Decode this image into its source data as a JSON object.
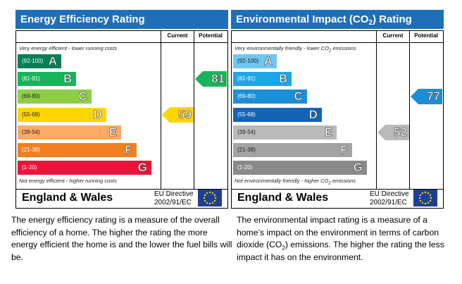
{
  "energy_chart": {
    "title": "Energy Efficiency Rating",
    "current_label": "Current",
    "potential_label": "Potential",
    "top_note": "Very energy efficient - lower running costs",
    "bottom_note": "Not energy efficient - higher running costs",
    "bands": [
      {
        "range": "(92-100)",
        "letter": "A",
        "color": "#008054"
      },
      {
        "range": "(81-91)",
        "letter": "B",
        "color": "#19b459"
      },
      {
        "range": "(69-80)",
        "letter": "C",
        "color": "#8dce46"
      },
      {
        "range": "(55-68)",
        "letter": "D",
        "color": "#ffd500"
      },
      {
        "range": "(39-54)",
        "letter": "E",
        "color": "#fcaa65"
      },
      {
        "range": "(21-38)",
        "letter": "F",
        "color": "#ef8023"
      },
      {
        "range": "(1-20)",
        "letter": "G",
        "color": "#e9153b"
      }
    ],
    "current": {
      "value": "59",
      "band": "D",
      "color": "#ffd500"
    },
    "potential": {
      "value": "81",
      "band": "B",
      "color": "#19b459"
    },
    "region": "England & Wales",
    "directive_line1": "EU Directive",
    "directive_line2": "2002/91/EC"
  },
  "impact_chart": {
    "title_prefix": "Environmental Impact (CO",
    "title_sub": "2",
    "title_suffix": ") Rating",
    "current_label": "Current",
    "potential_label": "Potential",
    "top_note_prefix": "Very environmentally friendly - lower CO",
    "top_note_sub": "2",
    "top_note_suffix": " emissions",
    "bottom_note_prefix": "Not environmentally friendly - higher CO",
    "bottom_note_sub": "2",
    "bottom_note_suffix": " emissions",
    "bands": [
      {
        "range": "(92-100)",
        "letter": "A",
        "color": "#6ec7f0"
      },
      {
        "range": "(81-91)",
        "letter": "B",
        "color": "#1ea6e6"
      },
      {
        "range": "(69-80)",
        "letter": "C",
        "color": "#1b8fd6"
      },
      {
        "range": "(55-68)",
        "letter": "D",
        "color": "#1364b4"
      },
      {
        "range": "(39-54)",
        "letter": "E",
        "color": "#b9b9b9"
      },
      {
        "range": "(21-38)",
        "letter": "F",
        "color": "#a3a3a3"
      },
      {
        "range": "(1-20)",
        "letter": "G",
        "color": "#8a8a8a"
      }
    ],
    "current": {
      "value": "52",
      "band": "E",
      "color": "#b9b9b9"
    },
    "potential": {
      "value": "77",
      "band": "C",
      "color": "#1b8fd6"
    },
    "region": "England & Wales",
    "directive_line1": "EU Directive",
    "directive_line2": "2002/91/EC"
  },
  "energy_description": "The energy efficiency rating is a measure of the overall efficiency of a home. The higher the rating the more energy efficient the home is and the lower the fuel bills will be.",
  "impact_description_prefix": "The environmental impact rating is a measure of a home’s impact on the environment in terms of carbon dioxide (CO",
  "impact_description_sub": "2",
  "impact_description_suffix": ") emissions. The higher the rating the less impact it has on the environment."
}
